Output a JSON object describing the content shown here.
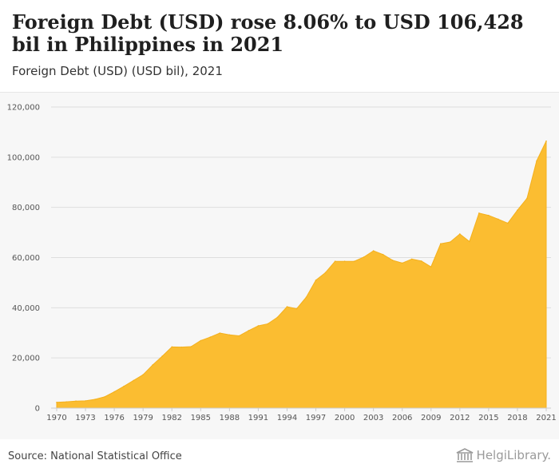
{
  "header": {
    "title": "Foreign Debt (USD) rose 8.06% to USD 106,428 bil in Philippines in 2021",
    "subtitle": "Foreign Debt (USD) (USD bil), 2021"
  },
  "footer": {
    "source": "Source: National Statistical Office",
    "logo_text": "HelgiLibrary."
  },
  "colors": {
    "area_fill": "#fbbd31",
    "area_stroke": "#f4b01d",
    "grid": "#dedede",
    "chart_background": "#f7f7f7"
  },
  "chart_data": {
    "type": "area",
    "title": "Foreign Debt (USD) rose 8.06% to USD 106,428 bil in Philippines in 2021",
    "subtitle": "Foreign Debt (USD) (USD bil), 2021",
    "xlabel": "",
    "ylabel": "",
    "ylim": [
      0,
      120000
    ],
    "xlim": [
      1970,
      2021
    ],
    "yticks": [
      0,
      20000,
      40000,
      60000,
      80000,
      100000,
      120000
    ],
    "ytick_labels": [
      "0",
      "20,000",
      "40,000",
      "60,000",
      "80,000",
      "100,000",
      "120,000"
    ],
    "xticks": [
      1970,
      1973,
      1976,
      1979,
      1982,
      1985,
      1988,
      1991,
      1994,
      1997,
      2000,
      2003,
      2006,
      2009,
      2012,
      2015,
      2018,
      2021
    ],
    "xtick_labels": [
      "1970",
      "1973",
      "1976",
      "1979",
      "1982",
      "1985",
      "1988",
      "1991",
      "1994",
      "1997",
      "2000",
      "2003",
      "2006",
      "2009",
      "2012",
      "2015",
      "2018",
      "2021"
    ],
    "grid": true,
    "legend": "none",
    "series": [
      {
        "x": [
          1970,
          1971,
          1972,
          1973,
          1974,
          1975,
          1976,
          1977,
          1978,
          1979,
          1980,
          1981,
          1982,
          1983,
          1984,
          1985,
          1986,
          1987,
          1988,
          1989,
          1990,
          1991,
          1992,
          1993,
          1994,
          1995,
          1996,
          1997,
          1998,
          1999,
          2000,
          2001,
          2002,
          2003,
          2004,
          2005,
          2006,
          2007,
          2008,
          2009,
          2010,
          2011,
          2012,
          2013,
          2014,
          2015,
          2016,
          2017,
          2018,
          2019,
          2020,
          2021
        ],
        "values": [
          2300,
          2500,
          2800,
          2900,
          3500,
          4500,
          6500,
          8700,
          11000,
          13300,
          17200,
          20700,
          24400,
          24300,
          24500,
          26900,
          28300,
          29900,
          29200,
          28800,
          30900,
          32800,
          33600,
          36200,
          40400,
          39600,
          44200,
          51000,
          54000,
          58500,
          58500,
          58500,
          60200,
          62700,
          61200,
          58900,
          57800,
          59400,
          58600,
          56300,
          65500,
          66200,
          69400,
          66400,
          77700,
          76800,
          75300,
          73700,
          78900,
          83600,
          98500,
          106428
        ]
      }
    ]
  }
}
